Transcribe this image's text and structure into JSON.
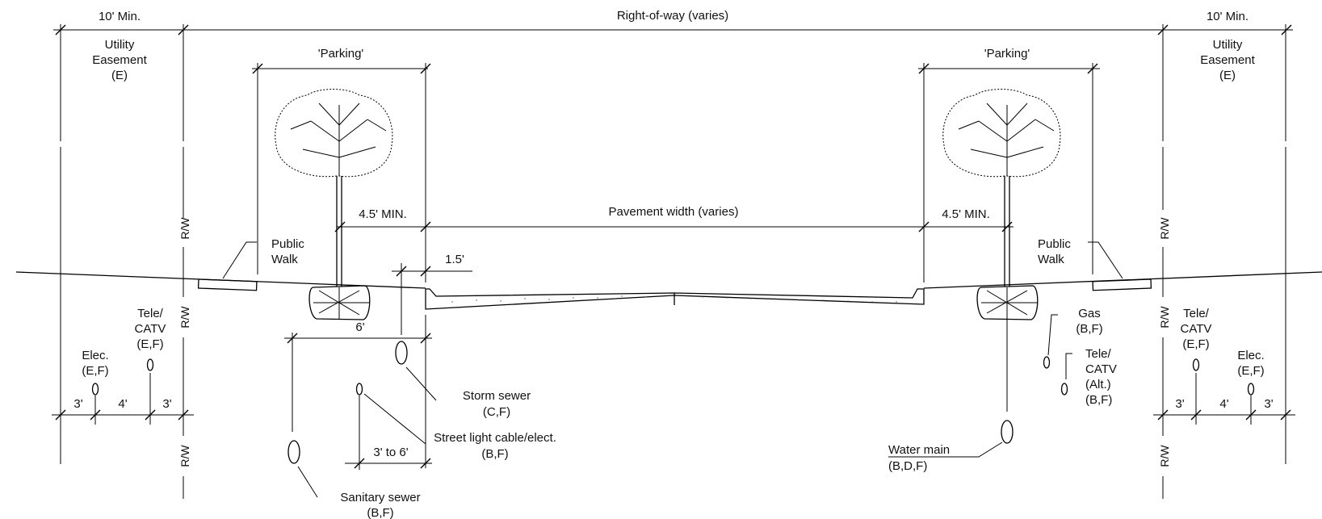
{
  "labels": {
    "right_of_way": "Right-of-way (varies)",
    "min10_left": "10' Min.",
    "min10_right": "10' Min.",
    "easement_left": [
      "Utility",
      "Easement",
      "(E)"
    ],
    "easement_right": [
      "Utility",
      "Easement",
      "(E)"
    ],
    "parking_left": "'Parking'",
    "parking_right": "'Parking'",
    "min45_left": "4.5' MIN.",
    "min45_right": "4.5' MIN.",
    "pavement_width": "Pavement width (varies)",
    "curb_15": "1.5'",
    "six_ft": "6'",
    "three_to_six": "3' to 6'",
    "public_walk_left": [
      "Public",
      "Walk"
    ],
    "public_walk_right": [
      "Public",
      "Walk"
    ],
    "rw": "R/W",
    "tele_left": [
      "Tele/",
      "CATV",
      "(E,F)"
    ],
    "elec_left": [
      "Elec.",
      "(E,F)"
    ],
    "tele_right": [
      "Tele/",
      "CATV",
      "(E,F)"
    ],
    "elec_right": [
      "Elec.",
      "(E,F)"
    ],
    "dim_3_a": "3'",
    "dim_4_a": "4'",
    "dim_3_b": "3'",
    "dim_3_c": "3'",
    "dim_4_b": "4'",
    "dim_3_d": "3'",
    "storm_sewer": [
      "Storm sewer",
      "(C,F)"
    ],
    "street_light": [
      "Street light cable/elect.",
      "(B,F)"
    ],
    "sanitary_sewer": [
      "Sanitary sewer",
      "(B,F)"
    ],
    "gas": [
      "Gas",
      "(B,F)"
    ],
    "tele_alt": [
      "Tele/",
      "CATV",
      "(Alt.)",
      "(B,F)"
    ],
    "water_main": [
      "Water main",
      "(B,D,F)"
    ]
  }
}
